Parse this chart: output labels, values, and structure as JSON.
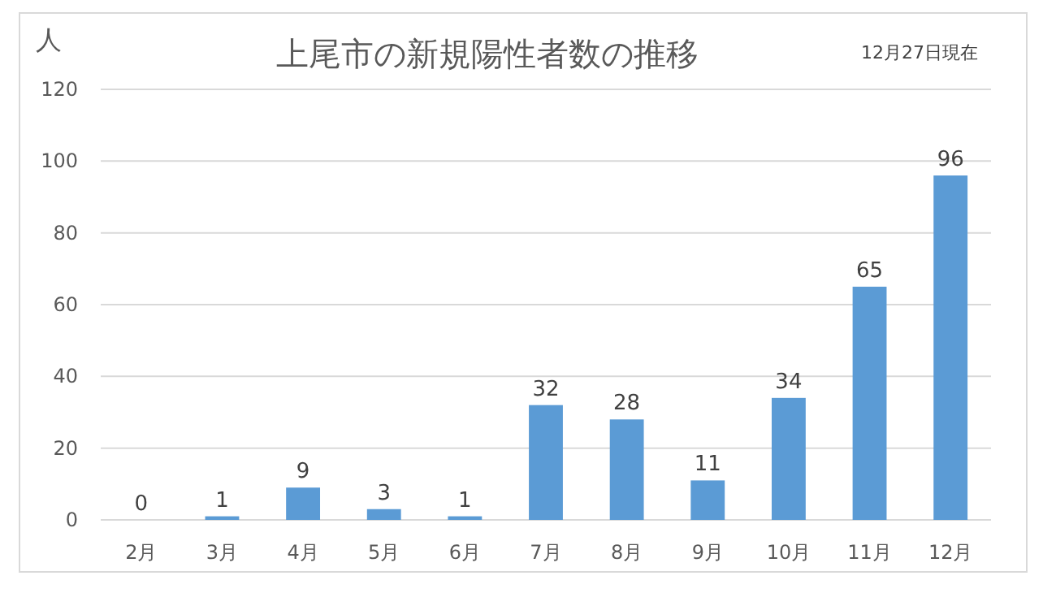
{
  "chart_data": {
    "type": "bar",
    "title": "上尾市の新規陽性者数の推移",
    "ylabel": "人",
    "annotations": [
      "12月27日現在"
    ],
    "categories": [
      "2月",
      "3月",
      "4月",
      "5月",
      "6月",
      "7月",
      "8月",
      "9月",
      "10月",
      "11月",
      "12月"
    ],
    "values": [
      0,
      1,
      9,
      3,
      1,
      32,
      28,
      11,
      34,
      65,
      96
    ],
    "color": "#5b9bd5",
    "ylim": [
      0,
      120
    ],
    "yticks": [
      0,
      20,
      40,
      60,
      80,
      100,
      120
    ],
    "grid": "y",
    "data_labels": true
  }
}
